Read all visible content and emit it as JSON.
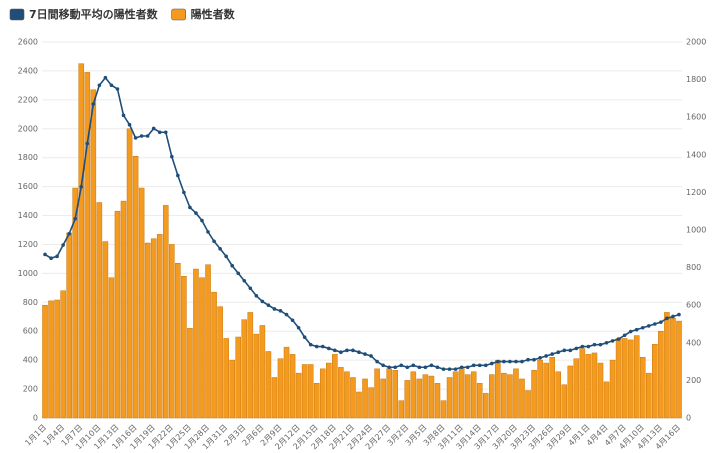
{
  "chart_data": {
    "type": "bar",
    "categories": [
      "1月1日",
      null,
      null,
      "1月4日",
      null,
      null,
      "1月7日",
      null,
      null,
      "1月10日",
      null,
      null,
      "1月13日",
      null,
      null,
      "1月16日",
      null,
      null,
      "1月19日",
      null,
      null,
      "1月22日",
      null,
      null,
      "1月25日",
      null,
      null,
      "1月28日",
      null,
      null,
      "1月31日",
      null,
      null,
      "2月3日",
      null,
      null,
      "2月6日",
      null,
      null,
      "2月9日",
      null,
      null,
      "2月12日",
      null,
      null,
      "2月15日",
      null,
      null,
      "2月18日",
      null,
      null,
      "2月21日",
      null,
      null,
      "2月24日",
      null,
      null,
      "2月27日",
      null,
      null,
      "3月2日",
      null,
      null,
      "3月5日",
      null,
      null,
      "3月8日",
      null,
      null,
      "3月11日",
      null,
      null,
      "3月14日",
      null,
      null,
      "3月17日",
      null,
      null,
      "3月20日",
      null,
      null,
      "3月23日",
      null,
      null,
      "3月26日",
      null,
      null,
      "3月29日",
      null,
      null,
      "4月1日",
      null,
      null,
      "4月4日",
      null,
      null,
      "4月7日",
      null,
      null,
      "4月10日",
      null,
      null,
      "4月13日",
      null,
      null,
      "4月16日"
    ],
    "series": [
      {
        "name": "7日間移動平均の陽性者数",
        "type": "line",
        "axis": "y2",
        "color": "#1f4e79",
        "values": [
          870,
          850,
          860,
          920,
          980,
          1060,
          1230,
          1460,
          1670,
          1770,
          1810,
          1770,
          1750,
          1610,
          1560,
          1490,
          1500,
          1500,
          1540,
          1520,
          1520,
          1390,
          1290,
          1200,
          1120,
          1090,
          1050,
          990,
          940,
          900,
          860,
          810,
          770,
          730,
          690,
          650,
          620,
          600,
          580,
          570,
          550,
          520,
          480,
          430,
          390,
          380,
          380,
          370,
          360,
          350,
          360,
          360,
          350,
          340,
          330,
          300,
          280,
          270,
          270,
          280,
          270,
          280,
          270,
          270,
          280,
          270,
          260,
          260,
          260,
          270,
          270,
          280,
          280,
          280,
          290,
          300,
          300,
          300,
          300,
          300,
          310,
          310,
          320,
          330,
          340,
          350,
          360,
          360,
          370,
          380,
          380,
          390,
          390,
          400,
          410,
          420,
          440,
          460,
          470,
          480,
          490,
          500,
          510,
          530,
          540,
          550
        ]
      },
      {
        "name": "陽性者数",
        "type": "bar",
        "color": "#f39a1f",
        "values": [
          780,
          810,
          816,
          880,
          1280,
          1590,
          2450,
          2390,
          2270,
          1490,
          1220,
          970,
          1430,
          1500,
          2000,
          1810,
          1590,
          1210,
          1240,
          1270,
          1470,
          1200,
          1070,
          980,
          620,
          1030,
          970,
          1060,
          870,
          770,
          550,
          400,
          560,
          680,
          730,
          580,
          640,
          460,
          280,
          410,
          490,
          440,
          310,
          370,
          370,
          240,
          340,
          380,
          440,
          350,
          320,
          280,
          180,
          270,
          210,
          340,
          270,
          340,
          330,
          120,
          260,
          320,
          270,
          300,
          290,
          240,
          120,
          280,
          320,
          350,
          300,
          320,
          240,
          170,
          300,
          400,
          310,
          300,
          340,
          270,
          190,
          330,
          400,
          380,
          420,
          320,
          230,
          360,
          410,
          480,
          440,
          450,
          380,
          250,
          400,
          550,
          550,
          540,
          570,
          420,
          310,
          510,
          600,
          730,
          690,
          670
        ]
      }
    ],
    "ylim": [
      0,
      2600
    ],
    "yticks": [
      0,
      200,
      400,
      600,
      800,
      1000,
      1200,
      1400,
      1600,
      1800,
      2000,
      2200,
      2400,
      2600
    ],
    "y2lim": [
      0,
      2000
    ],
    "y2ticks": [
      0,
      200,
      400,
      600,
      800,
      1000,
      1200,
      1400,
      1600,
      1800,
      2000
    ],
    "grid": true
  }
}
